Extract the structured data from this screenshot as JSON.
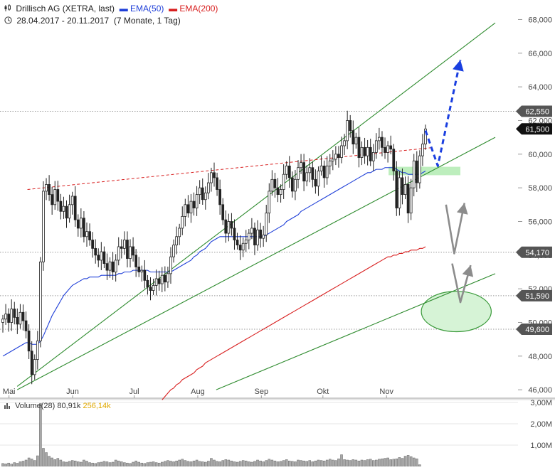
{
  "header": {
    "instrument": "Drillisch AG (XETRA, last)",
    "ema50_label": "EMA(50)",
    "ema200_label": "EMA(200)",
    "date_range": "28.04.2017 - 20.11.2017",
    "period": "(7 Monate, 1 Tag)"
  },
  "volume_legend": {
    "label": "Volume(28)",
    "value": "80,91k",
    "average": "256,14k"
  },
  "colors": {
    "ema50": "#1f3fd8",
    "ema200": "#d81f1f",
    "trend": "#2e8b2e",
    "forecast_blue": "#1a3fe0",
    "forecast_gray": "#8c8c8c",
    "zone_fill": "#b6ecb6",
    "level_dark": "#555555",
    "price_current": "#111111"
  },
  "chart_data": {
    "type": "candlestick",
    "ylim": [
      45.5,
      68.4
    ],
    "yticks": [
      "46,000",
      "48,000",
      "50,000",
      "52,000",
      "54,000",
      "56,000",
      "58,000",
      "60,000",
      "62,000",
      "64,000",
      "66,000",
      "68,000"
    ],
    "ytick_values": [
      46,
      48,
      50,
      52,
      54,
      56,
      58,
      60,
      62,
      64,
      66,
      68
    ],
    "xticks": [
      "Mai",
      "Jun",
      "Jul",
      "Aug",
      "Sep",
      "Okt",
      "Nov"
    ],
    "xtick_dates": [
      "2017-05-01",
      "2017-06-01",
      "2017-07-01",
      "2017-08-01",
      "2017-09-01",
      "2017-10-01",
      "2017-11-01"
    ],
    "date_range": [
      "2017-04-28",
      "2017-11-20"
    ],
    "forecast_end": "2017-12-22",
    "close": [
      50.2,
      50.5,
      50.0,
      50.8,
      50.3,
      49.9,
      50.6,
      50.1,
      49.5,
      48.3,
      46.9,
      47.8,
      48.9,
      53.6,
      57.8,
      58.2,
      57.6,
      57.0,
      57.9,
      57.2,
      56.6,
      56.9,
      56.2,
      57.0,
      57.5,
      56.1,
      55.6,
      56.2,
      55.1,
      55.4,
      54.9,
      54.4,
      54.0,
      53.7,
      54.2,
      53.5,
      53.1,
      53.6,
      53.0,
      53.7,
      54.5,
      54.4,
      54.9,
      53.8,
      54.5,
      54.0,
      53.3,
      53.0,
      53.1,
      52.5,
      52.1,
      51.9,
      52.2,
      52.6,
      52.3,
      52.8,
      52.4,
      52.9,
      53.9,
      54.6,
      55.1,
      55.6,
      56.3,
      57.0,
      56.5,
      57.2,
      56.8,
      57.6,
      58.0,
      57.3,
      57.7,
      58.3,
      58.9,
      58.6,
      57.9,
      57.0,
      56.1,
      55.3,
      56.0,
      55.6,
      54.9,
      54.6,
      54.3,
      54.7,
      54.9,
      55.3,
      55.6,
      54.6,
      55.5,
      55.0,
      55.2,
      56.5,
      57.8,
      58.5,
      58.0,
      57.6,
      57.9,
      58.8,
      59.3,
      58.6,
      57.8,
      58.5,
      59.2,
      59.5,
      58.4,
      58.9,
      59.2,
      58.5,
      58.1,
      59.0,
      59.3,
      58.6,
      59.3,
      59.6,
      59.7,
      60.0,
      59.8,
      60.5,
      60.8,
      62.0,
      61.4,
      60.6,
      61.0,
      59.8,
      60.4,
      59.9,
      60.4,
      59.6,
      60.1,
      60.8,
      61.0,
      60.4,
      60.1,
      60.5,
      60.3,
      59.0,
      56.8,
      58.6,
      57.6,
      58.2,
      56.5,
      58.0,
      59.6,
      58.3,
      59.9,
      60.6,
      61.5
    ],
    "open": [
      50.0,
      50.2,
      50.5,
      50.0,
      50.8,
      50.3,
      49.9,
      50.6,
      50.1,
      49.5,
      48.3,
      46.9,
      47.8,
      48.9,
      53.6,
      57.8,
      58.2,
      57.6,
      57.0,
      57.9,
      57.2,
      56.6,
      56.9,
      56.2,
      57.0,
      57.5,
      56.1,
      55.6,
      56.2,
      55.1,
      55.4,
      54.9,
      54.4,
      54.0,
      53.7,
      54.2,
      53.5,
      53.1,
      53.6,
      53.0,
      53.7,
      54.5,
      54.4,
      54.9,
      53.8,
      54.5,
      54.0,
      53.3,
      53.0,
      53.1,
      52.5,
      52.1,
      51.9,
      52.2,
      52.6,
      52.3,
      52.8,
      52.4,
      52.9,
      53.9,
      54.6,
      55.1,
      55.6,
      56.3,
      57.0,
      56.5,
      57.2,
      56.8,
      57.6,
      58.0,
      57.3,
      57.7,
      58.3,
      58.9,
      58.6,
      57.9,
      57.0,
      56.1,
      55.3,
      56.0,
      55.6,
      54.9,
      54.6,
      54.3,
      54.7,
      54.9,
      55.3,
      55.6,
      54.6,
      55.5,
      55.0,
      55.2,
      56.5,
      57.8,
      58.5,
      58.0,
      57.6,
      57.9,
      58.8,
      59.3,
      58.6,
      57.8,
      58.5,
      59.2,
      59.5,
      58.4,
      58.9,
      59.2,
      58.5,
      58.1,
      59.0,
      59.3,
      58.6,
      59.3,
      59.6,
      59.7,
      60.0,
      59.8,
      60.5,
      60.8,
      62.0,
      61.4,
      60.6,
      61.0,
      59.8,
      60.4,
      59.9,
      60.4,
      59.6,
      60.1,
      60.8,
      61.0,
      60.4,
      60.1,
      60.5,
      60.3,
      59.0,
      56.8,
      58.6,
      57.6,
      58.2,
      56.5,
      58.0,
      59.6,
      58.3,
      59.9,
      60.6
    ],
    "ema50": [
      48.0,
      48.1,
      48.2,
      48.3,
      48.4,
      48.5,
      48.6,
      48.7,
      48.8,
      48.8,
      48.7,
      48.7,
      48.7,
      48.9,
      49.2,
      49.6,
      50.0,
      50.4,
      50.7,
      51.0,
      51.3,
      51.6,
      51.8,
      52.0,
      52.2,
      52.3,
      52.4,
      52.5,
      52.6,
      52.6,
      52.7,
      52.7,
      52.7,
      52.7,
      52.8,
      52.8,
      52.8,
      52.8,
      52.8,
      52.8,
      52.9,
      52.9,
      53.0,
      53.0,
      53.0,
      53.1,
      53.1,
      53.1,
      53.1,
      53.1,
      53.1,
      53.0,
      53.0,
      53.0,
      53.0,
      53.0,
      53.0,
      53.0,
      53.0,
      53.1,
      53.2,
      53.3,
      53.4,
      53.5,
      53.6,
      53.7,
      53.9,
      54.0,
      54.2,
      54.3,
      54.4,
      54.6,
      54.8,
      54.9,
      55.0,
      55.1,
      55.1,
      55.1,
      55.1,
      55.1,
      55.1,
      55.1,
      55.1,
      55.1,
      55.1,
      55.1,
      55.1,
      55.1,
      55.1,
      55.1,
      55.1,
      55.2,
      55.3,
      55.4,
      55.5,
      55.6,
      55.7,
      55.8,
      56.0,
      56.1,
      56.2,
      56.3,
      56.4,
      56.6,
      56.7,
      56.8,
      56.9,
      57.0,
      57.1,
      57.2,
      57.3,
      57.4,
      57.5,
      57.6,
      57.7,
      57.8,
      57.9,
      58.0,
      58.1,
      58.2,
      58.3,
      58.4,
      58.5,
      58.6,
      58.7,
      58.8,
      58.9,
      58.9,
      59.0,
      59.1,
      59.1,
      59.1,
      59.2,
      59.2,
      59.2,
      59.2,
      59.1,
      59.0,
      58.9,
      58.9,
      58.8,
      58.8,
      58.8,
      58.8,
      58.8,
      58.9,
      59.0
    ],
    "ema200_start_index": 55,
    "ema200": [
      45.4,
      45.6,
      45.8,
      46.0,
      46.1,
      46.3,
      46.4,
      46.6,
      46.7,
      46.8,
      46.9,
      47.0,
      47.2,
      47.3,
      47.4,
      47.6,
      47.7,
      47.8,
      47.9,
      48.0,
      48.1,
      48.2,
      48.3,
      48.4,
      48.5,
      48.6,
      48.7,
      48.8,
      48.9,
      49.0,
      49.1,
      49.2,
      49.3,
      49.4,
      49.5,
      49.6,
      49.7,
      49.8,
      49.9,
      50.0,
      50.1,
      50.2,
      50.3,
      50.4,
      50.5,
      50.6,
      50.7,
      50.8,
      50.9,
      51.0,
      51.1,
      51.2,
      51.3,
      51.4,
      51.5,
      51.6,
      51.7,
      51.8,
      51.9,
      52.0,
      52.1,
      52.2,
      52.3,
      52.4,
      52.5,
      52.6,
      52.7,
      52.8,
      52.9,
      53.0,
      53.1,
      53.2,
      53.3,
      53.4,
      53.5,
      53.6,
      53.7,
      53.8,
      53.9,
      53.9,
      54.0,
      54.0,
      54.1,
      54.1,
      54.2,
      54.2,
      54.3,
      54.3,
      54.3,
      54.4,
      54.4,
      54.5
    ],
    "resistance_dashed": [
      {
        "x": "2017-05-10",
        "y": 57.9
      },
      {
        "x": "2017-11-24",
        "y": 60.4
      }
    ],
    "trend_lines": [
      [
        {
          "x": "2017-05-05",
          "y": 46.2
        },
        {
          "x": "2017-12-24",
          "y": 67.8
        }
      ],
      [
        {
          "x": "2017-05-05",
          "y": 46.0
        },
        {
          "x": "2017-12-24",
          "y": 61.0
        }
      ],
      [
        {
          "x": "2017-08-10",
          "y": 46.0
        },
        {
          "x": "2017-12-24",
          "y": 52.9
        }
      ]
    ],
    "levels": [
      {
        "label": "62,550",
        "value": 62.55,
        "style": "dark"
      },
      {
        "label": "61,500",
        "value": 61.5,
        "style": "current"
      },
      {
        "label": "54,170",
        "value": 54.17,
        "style": "dark"
      },
      {
        "label": "51,590",
        "value": 51.59,
        "style": "dark"
      },
      {
        "label": "49,600",
        "value": 49.6,
        "style": "dark"
      }
    ],
    "target_zone": {
      "x": [
        "2017-11-02",
        "2017-12-07"
      ],
      "y": [
        58.75,
        59.25
      ]
    },
    "target_ellipse": {
      "cx": "2017-12-05",
      "cy": 50.65,
      "rx_days": 11,
      "ry": 1.2
    },
    "forecast_blue": [
      {
        "x": "2017-11-20",
        "y": 61.4
      },
      {
        "x": "2017-11-26",
        "y": 59.3
      },
      {
        "x": "2017-12-07",
        "y": 65.6
      }
    ],
    "forecast_gray": [
      [
        {
          "x": "2017-11-30",
          "y": 57.0
        },
        {
          "x": "2017-12-04",
          "y": 54.1
        },
        {
          "x": "2017-12-09",
          "y": 57.1
        }
      ],
      [
        {
          "x": "2017-12-03",
          "y": 53.5
        },
        {
          "x": "2017-12-07",
          "y": 51.2
        },
        {
          "x": "2017-12-12",
          "y": 53.4
        }
      ]
    ],
    "volume": {
      "ylim": [
        0,
        3.0
      ],
      "yticks": [
        "1,00M",
        "2,00M",
        "3,00M"
      ],
      "ytick_values": [
        1,
        2,
        3
      ],
      "values": [
        0.14,
        0.12,
        0.16,
        0.11,
        0.18,
        0.15,
        0.22,
        0.25,
        0.3,
        0.4,
        0.35,
        0.28,
        0.5,
        2.95,
        0.85,
        0.65,
        0.48,
        0.4,
        0.32,
        0.38,
        0.3,
        0.22,
        0.2,
        0.24,
        0.28,
        0.26,
        0.22,
        0.2,
        0.3,
        0.25,
        0.18,
        0.16,
        0.14,
        0.18,
        0.2,
        0.24,
        0.22,
        0.18,
        0.2,
        0.3,
        0.26,
        0.22,
        0.18,
        0.16,
        0.14,
        0.2,
        0.26,
        0.2,
        0.16,
        0.14,
        0.18,
        0.2,
        0.22,
        0.18,
        0.16,
        0.2,
        0.24,
        0.28,
        0.25,
        0.22,
        0.26,
        0.3,
        0.34,
        0.28,
        0.24,
        0.22,
        0.26,
        0.3,
        0.24,
        0.22,
        0.2,
        0.25,
        0.38,
        0.3,
        0.24,
        0.22,
        0.28,
        0.32,
        0.3,
        0.26,
        0.22,
        0.2,
        0.24,
        0.28,
        0.26,
        0.22,
        0.2,
        0.24,
        0.3,
        0.26,
        0.22,
        0.28,
        0.34,
        0.3,
        0.26,
        0.22,
        0.24,
        0.28,
        0.32,
        0.26,
        0.24,
        0.22,
        0.3,
        0.28,
        0.26,
        0.24,
        0.28,
        0.22,
        0.26,
        0.3,
        0.28,
        0.26,
        0.3,
        0.34,
        0.3,
        0.28,
        0.36,
        0.55,
        0.32,
        0.3,
        0.28,
        0.32,
        0.3,
        0.26,
        0.3,
        0.28,
        0.32,
        0.34,
        0.28,
        0.3,
        0.34,
        0.36,
        0.38,
        0.4,
        0.32,
        0.34,
        0.36,
        0.42,
        0.38,
        0.48,
        0.52,
        0.46,
        0.4,
        0.36,
        0.08
      ]
    }
  }
}
